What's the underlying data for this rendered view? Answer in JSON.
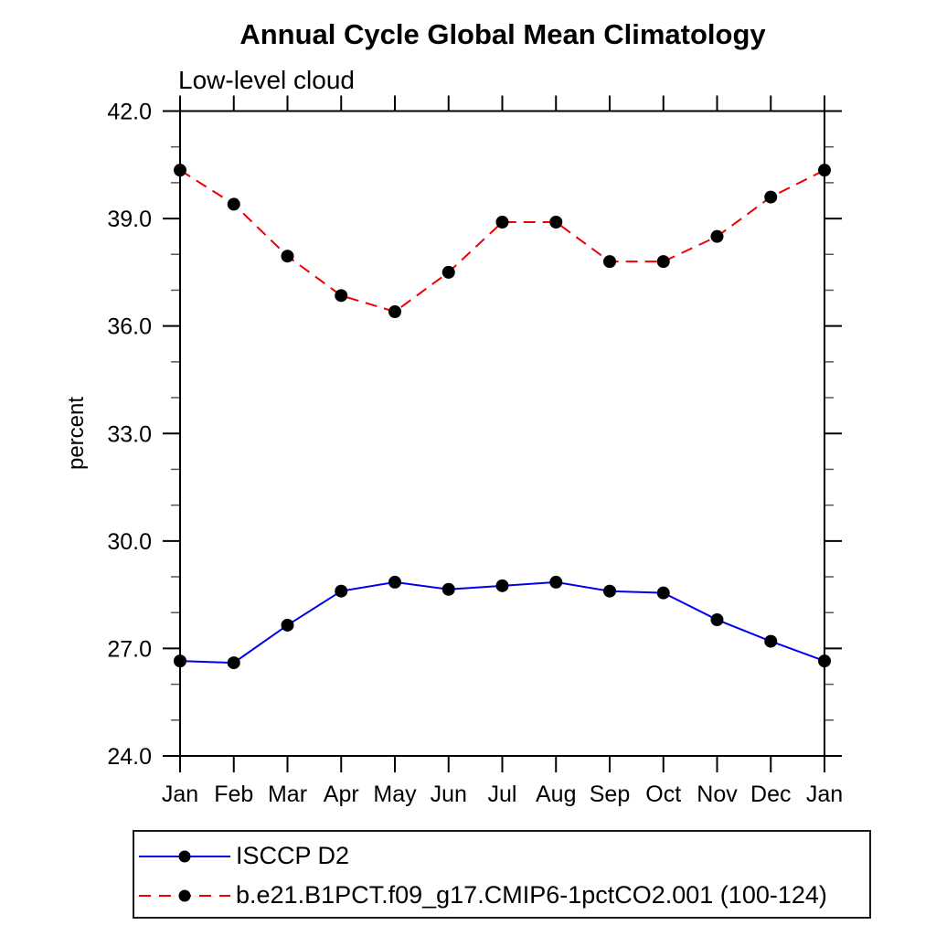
{
  "chart_data": {
    "type": "line",
    "title": "Annual Cycle Global Mean Climatology",
    "subtitle": "Low-level cloud",
    "ylabel": "percent",
    "xlabel": "",
    "grid": false,
    "x_categories": [
      "Jan",
      "Feb",
      "Mar",
      "Apr",
      "May",
      "Jun",
      "Jul",
      "Aug",
      "Sep",
      "Oct",
      "Nov",
      "Dec",
      "Jan"
    ],
    "ylim": [
      24.0,
      42.0
    ],
    "ytick_major_interval": 3.0,
    "ytick_minor_interval": 1.0,
    "ytick_labels": [
      "24.0",
      "27.0",
      "30.0",
      "33.0",
      "36.0",
      "39.0",
      "42.0"
    ],
    "legend_position": "bottom-left-box",
    "series": [
      {
        "name": "ISCCP D2",
        "color": "#0000ee",
        "line_style": "solid",
        "marker": "filled-circle",
        "marker_color": "#000000",
        "values": [
          26.65,
          26.6,
          27.65,
          28.6,
          28.85,
          28.65,
          28.75,
          28.85,
          28.6,
          28.55,
          27.8,
          27.2,
          26.65
        ]
      },
      {
        "name": "b.e21.B1PCT.f09_g17.CMIP6-1pctCO2.001 (100-124)",
        "color": "#ee0000",
        "line_style": "dashed",
        "marker": "filled-circle",
        "marker_color": "#000000",
        "values": [
          40.35,
          39.4,
          37.95,
          36.85,
          36.4,
          37.5,
          38.9,
          38.9,
          37.8,
          37.8,
          38.5,
          39.6,
          40.35
        ]
      }
    ]
  }
}
